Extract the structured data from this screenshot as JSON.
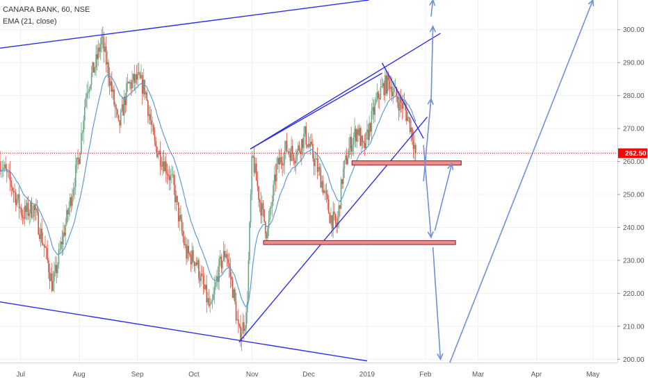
{
  "header": {
    "symbol_line": "CANARA BANK, 60, NSE",
    "indicator_line": "EMA (21, close)"
  },
  "colors": {
    "up_candle": "#6ba583",
    "down_candle": "#d75442",
    "ema": "#5b9bd5",
    "trendline": "#2c2ce8",
    "projection": "#6f8fd6",
    "zone_fill": "#f28b8b",
    "zone_border": "#7a1f2b",
    "last_price": "#ff0000"
  },
  "chart_data": {
    "type": "line",
    "title": "CANARA BANK, 60, NSE",
    "xlabel": "",
    "ylabel": "",
    "ylim": [
      199,
      309
    ],
    "yticks": [
      200,
      210,
      220,
      230,
      240,
      250,
      260,
      270,
      280,
      290,
      300
    ],
    "ytick_labels": [
      "200.00",
      "210.00",
      "220.00",
      "230.00",
      "240.00",
      "250.00",
      "260.00",
      "270.00",
      "280.00",
      "290.00",
      "300.00"
    ],
    "xtick_labels": [
      "Jul",
      "Aug",
      "Sep",
      "Oct",
      "Nov",
      "Dec",
      "2019",
      "Feb",
      "Mar",
      "Apr",
      "May"
    ],
    "xtick_dates": [
      "2018-07-01",
      "2018-08-01",
      "2018-09-01",
      "2018-10-01",
      "2018-11-01",
      "2018-12-01",
      "2019-01-01",
      "2019-02-01",
      "2019-03-01",
      "2019-04-01",
      "2019-05-01"
    ],
    "xlim": [
      "2018-06-20",
      "2019-05-14"
    ],
    "last_price": 262.5,
    "last_price_label": "262.50",
    "price_path": [
      [
        "2018-06-20",
        260
      ],
      [
        "2018-06-26",
        253
      ],
      [
        "2018-07-02",
        244
      ],
      [
        "2018-07-08",
        246
      ],
      [
        "2018-07-14",
        233
      ],
      [
        "2018-07-18",
        222
      ],
      [
        "2018-07-23",
        236
      ],
      [
        "2018-07-27",
        247
      ],
      [
        "2018-08-01",
        262
      ],
      [
        "2018-08-05",
        282
      ],
      [
        "2018-08-10",
        290
      ],
      [
        "2018-08-13",
        297
      ],
      [
        "2018-08-17",
        286
      ],
      [
        "2018-08-22",
        270
      ],
      [
        "2018-08-27",
        283
      ],
      [
        "2018-09-01",
        285
      ],
      [
        "2018-09-05",
        282
      ],
      [
        "2018-09-10",
        265
      ],
      [
        "2018-09-15",
        260
      ],
      [
        "2018-09-20",
        253
      ],
      [
        "2018-09-23",
        243
      ],
      [
        "2018-09-27",
        232
      ],
      [
        "2018-10-02",
        230
      ],
      [
        "2018-10-06",
        222
      ],
      [
        "2018-10-10",
        214
      ],
      [
        "2018-10-14",
        227
      ],
      [
        "2018-10-18",
        233
      ],
      [
        "2018-10-22",
        220
      ],
      [
        "2018-10-25",
        207
      ],
      [
        "2018-10-29",
        213
      ],
      [
        "2018-11-01",
        262
      ],
      [
        "2018-11-05",
        248
      ],
      [
        "2018-11-09",
        238
      ],
      [
        "2018-11-14",
        258
      ],
      [
        "2018-11-19",
        264
      ],
      [
        "2018-11-24",
        262
      ],
      [
        "2018-11-29",
        268
      ],
      [
        "2018-12-03",
        262
      ],
      [
        "2018-12-08",
        254
      ],
      [
        "2018-12-12",
        244
      ],
      [
        "2018-12-16",
        240
      ],
      [
        "2018-12-19",
        256
      ],
      [
        "2018-12-23",
        265
      ],
      [
        "2018-12-27",
        270
      ],
      [
        "2018-12-30",
        263
      ],
      [
        "2019-01-03",
        272
      ],
      [
        "2019-01-07",
        280
      ],
      [
        "2019-01-10",
        283
      ],
      [
        "2019-01-13",
        284
      ],
      [
        "2019-01-17",
        279
      ],
      [
        "2019-01-21",
        276
      ],
      [
        "2019-01-24",
        271
      ],
      [
        "2019-01-27",
        262.5
      ]
    ],
    "ema_period": 21,
    "trendlines": [
      {
        "name": "upper channel",
        "from": [
          "2018-06-20",
          294.4
        ],
        "to": [
          "2019-01-02",
          309
        ]
      },
      {
        "name": "lower channel",
        "from": [
          "2018-06-20",
          217.4
        ],
        "to": [
          "2019-01-01",
          199.5
        ]
      },
      {
        "name": "rising support",
        "from": [
          "2018-10-25",
          205.2
        ],
        "to": [
          "2019-02-02",
          273.5
        ]
      },
      {
        "name": "channel top",
        "from": [
          "2018-10-31",
          263.8
        ],
        "to": [
          "2019-01-09",
          286.8
        ]
      },
      {
        "name": "wedge top",
        "from": [
          "2018-10-31",
          263.8
        ],
        "to": [
          "2019-02-09",
          298.9
        ]
      },
      {
        "name": "descending line",
        "from": [
          "2019-01-09",
          289.9
        ],
        "to": [
          "2019-01-31",
          267.0
        ]
      }
    ],
    "zones": [
      {
        "from": "2018-12-24",
        "to": "2019-02-20",
        "top": 260.2,
        "bottom": 258.9
      },
      {
        "from": "2018-11-07",
        "to": "2019-02-17",
        "top": 236.0,
        "bottom": 234.8
      }
    ],
    "projections": [
      {
        "from": [
          "2019-01-31",
          254
        ],
        "to": [
          "2019-02-04",
          279
        ]
      },
      {
        "from": [
          "2019-02-04",
          278
        ],
        "to": [
          "2019-02-05",
          301
        ]
      },
      {
        "from": [
          "2019-02-04",
          304
        ],
        "to": [
          "2019-02-05",
          309
        ]
      },
      {
        "from": [
          "2019-01-31",
          265
        ],
        "to": [
          "2019-02-04",
          237
        ]
      },
      {
        "from": [
          "2019-02-05",
          234
        ],
        "to": [
          "2019-02-09",
          200
        ]
      },
      {
        "from": [
          "2019-02-06",
          239
        ],
        "to": [
          "2019-02-15",
          259.3
        ]
      },
      {
        "from": [
          "2019-02-14",
          199
        ],
        "to": [
          "2019-05-01",
          309
        ]
      }
    ]
  }
}
